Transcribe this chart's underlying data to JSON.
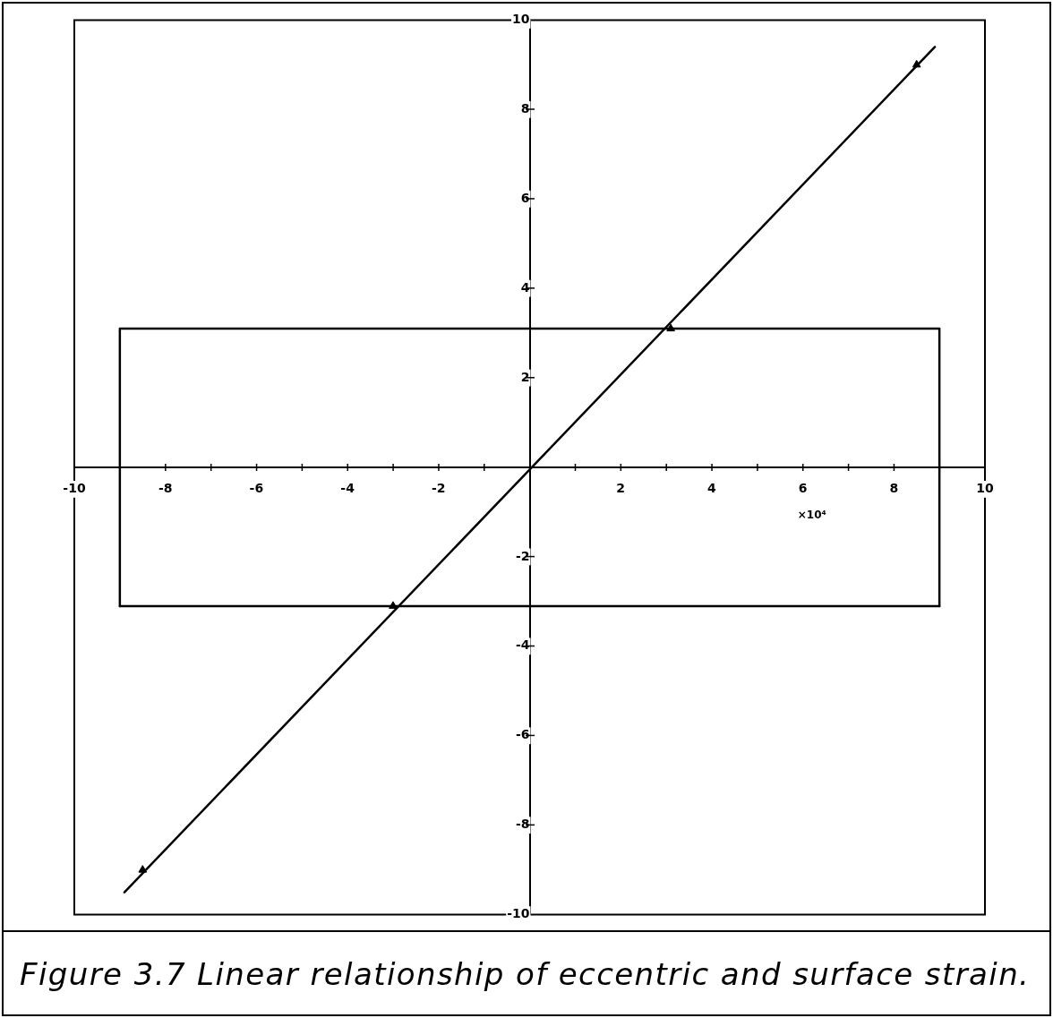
{
  "chart_data": {
    "type": "scatter",
    "title": "Figure 3.7 Linear relationship of eccentric and surface strain.",
    "xlabel": "×10⁴",
    "marker": "triangle",
    "xlim": [
      -10,
      10
    ],
    "ylim": [
      -10,
      10
    ],
    "xticks": [
      -10,
      {
        "value": -9,
        "label": null
      },
      -8,
      {
        "value": -7,
        "label": null
      },
      -6,
      {
        "value": -5,
        "label": null
      },
      -4,
      {
        "value": -3,
        "label": null
      },
      -2,
      {
        "value": -1,
        "label": null
      },
      {
        "value": 1,
        "label": null
      },
      2,
      {
        "value": 3,
        "label": null
      },
      4,
      {
        "value": 5,
        "label": null
      },
      6,
      {
        "value": 7,
        "label": null
      },
      8,
      {
        "value": 9,
        "label": null
      },
      10
    ],
    "yticks": [
      -10,
      -8,
      -6,
      -4,
      -2,
      2,
      4,
      6,
      8,
      10
    ],
    "series": [
      {
        "type": "line",
        "marker": "none",
        "color": "#000000",
        "x": [
          -9,
          -9,
          9,
          9
        ],
        "values": [
          -3.1,
          3.1,
          3.1,
          -3.1
        ]
      },
      {
        "type": "line",
        "marker": "none",
        "color": "#000000",
        "x": [
          -9,
          9
        ],
        "values": [
          -3.1,
          -3.1
        ]
      },
      {
        "type": "line",
        "marker": "none",
        "color": "#000000",
        "x": [
          -8.9,
          8.9
        ],
        "values": [
          -9.5,
          9.4
        ]
      },
      {
        "type": "scatter",
        "color": "#000000",
        "x": [
          -8.5,
          -3.0,
          3.1,
          8.5
        ],
        "values": [
          -9.0,
          -3.1,
          3.1,
          9.0
        ]
      }
    ]
  }
}
